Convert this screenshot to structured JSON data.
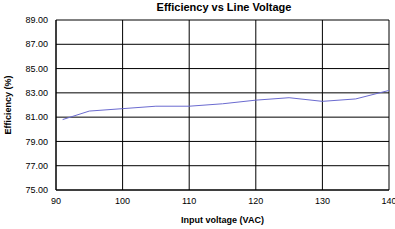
{
  "chart_data": {
    "type": "line",
    "title": "Efficiency vs Line Voltage",
    "x_label": "Input voltage (VAC)",
    "y_label": "Efficiency (%)",
    "x": [
      91,
      95,
      100,
      105,
      110,
      115,
      120,
      125,
      130,
      135,
      140
    ],
    "series": [
      {
        "name": "Efficiency",
        "color": "#6b6bd0",
        "values": [
          80.8,
          81.5,
          81.7,
          81.9,
          81.9,
          82.1,
          82.4,
          82.6,
          82.3,
          82.5,
          83.2
        ]
      }
    ],
    "xlim": [
      90,
      140
    ],
    "xticks": [
      90,
      100,
      110,
      120,
      130,
      140
    ],
    "ylim": [
      75,
      89
    ],
    "yticks": [
      {
        "value": 75,
        "label": "75.00"
      },
      {
        "value": 77,
        "label": "77.00"
      },
      {
        "value": 79,
        "label": "79.00"
      },
      {
        "value": 81,
        "label": "81.00"
      },
      {
        "value": 83,
        "label": "83.00"
      },
      {
        "value": 85,
        "label": "85.00"
      },
      {
        "value": 87,
        "label": "87.00"
      },
      {
        "value": 89,
        "label": "89.00"
      }
    ],
    "grid": true,
    "marker": "none"
  }
}
